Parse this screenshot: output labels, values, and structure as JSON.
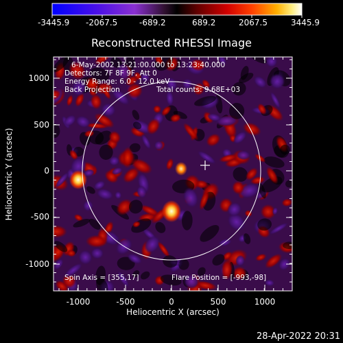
{
  "colorbar": {
    "ticks": [
      "-3445.9",
      "-2067.5",
      "-689.2",
      "689.2",
      "2067.5",
      "3445.9"
    ],
    "colors": [
      "#0000ff",
      "#5a00e0",
      "#8a2bd8",
      "#3a0a2a",
      "#000000",
      "#5a0000",
      "#c00000",
      "#ff3000",
      "#ff9000",
      "#ffe060",
      "#ffffff"
    ]
  },
  "title": "Reconstructed RHESSI Image",
  "info": {
    "line1": "6-May-2002 13:21:00.000 to 13:23:40.000",
    "line2": "Detectors: 7F 8F 9F, Att 0",
    "line3": "Energy Range: 6.0 - 12.0 keV",
    "line4a": "Back Projection",
    "line4b": "Total counts: 9.68E+03"
  },
  "footer_left": "Spin Axis = [355,17]",
  "footer_right": "Flare Position = [-993,-98]",
  "xaxis": {
    "label": "Heliocentric X (arcsec)",
    "ticks": [
      "-1000",
      "-500",
      "0",
      "500",
      "1000"
    ],
    "range": [
      -1280,
      1280
    ]
  },
  "yaxis": {
    "label": "Heliocentric Y (arcsec)",
    "ticks": [
      "1000",
      "500",
      "0",
      "-500",
      "-1000"
    ],
    "range": [
      -1280,
      1280
    ]
  },
  "timestamp": "28-Apr-2022 20:31",
  "colors": {
    "limb": "#ffffff",
    "background": "#000000"
  }
}
